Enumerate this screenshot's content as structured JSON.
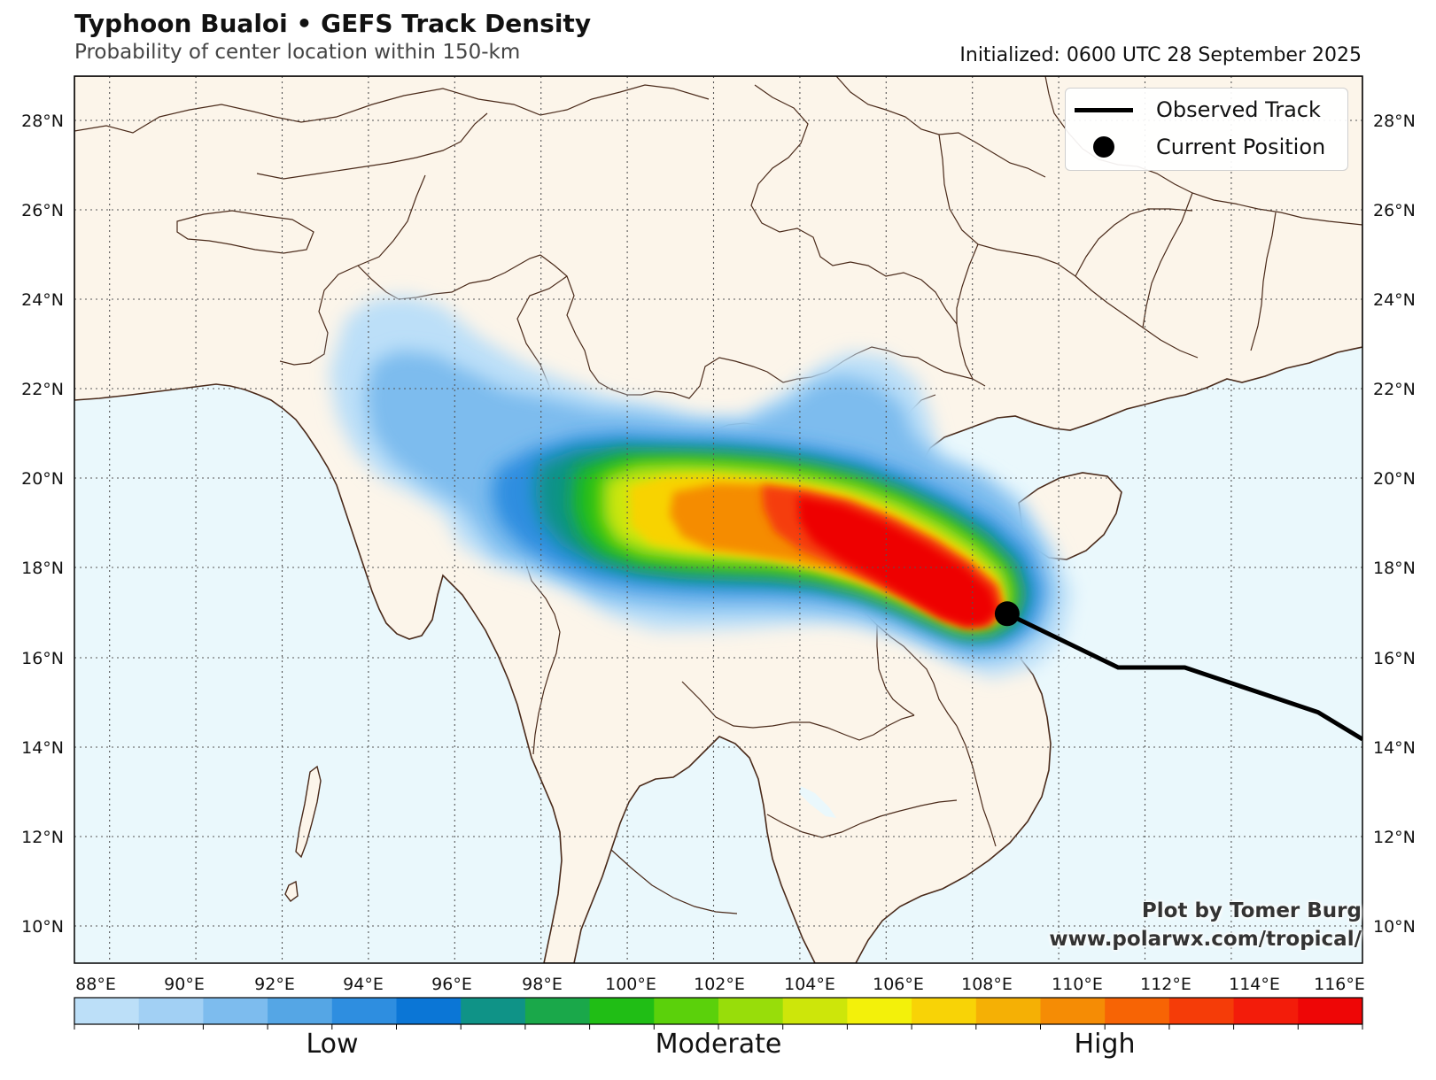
{
  "header": {
    "title": "Typhoon Bualoi • GEFS Track Density",
    "subtitle": "Probability of center location within 150-km",
    "initialized": "Initialized: 0600 UTC 28 September 2025"
  },
  "legend": {
    "track_label": "Observed Track",
    "position_label": "Current Position"
  },
  "credit": {
    "line1": "Plot by Tomer Burg",
    "line2": "www.polarwx.com/tropical/"
  },
  "map": {
    "lon_range": [
      87,
      116
    ],
    "lat_range": [
      9.2,
      29
    ],
    "lon_ticks": [
      "88°E",
      "90°E",
      "92°E",
      "94°E",
      "96°E",
      "98°E",
      "100°E",
      "102°E",
      "104°E",
      "106°E",
      "108°E",
      "110°E",
      "112°E",
      "114°E",
      "116°E"
    ],
    "lat_ticks": [
      "10°N",
      "12°N",
      "14°N",
      "16°N",
      "18°N",
      "20°N",
      "22°N",
      "24°N",
      "26°N",
      "28°N"
    ],
    "land_color": "#fcf5ea",
    "ocean_color": "#eaf8fc",
    "border_color": "#4a2a1a"
  },
  "storm": {
    "current_position": {
      "lon": 108.0,
      "lat": 17.0
    },
    "observed_track": [
      {
        "lon": 108.0,
        "lat": 17.0
      },
      {
        "lon": 110.5,
        "lat": 15.8
      },
      {
        "lon": 112.0,
        "lat": 15.8
      },
      {
        "lon": 113.8,
        "lat": 15.2
      },
      {
        "lon": 115.0,
        "lat": 14.8
      },
      {
        "lon": 116.0,
        "lat": 14.2
      }
    ]
  },
  "colorbar": {
    "colors": [
      "#bcdff8",
      "#a2d0f4",
      "#7dbcee",
      "#55a6e5",
      "#2e8ee0",
      "#0b76d6",
      "#0f9387",
      "#1aa84a",
      "#20be15",
      "#5bd10b",
      "#98dd0a",
      "#cde60a",
      "#f3f10a",
      "#f8d306",
      "#f5b005",
      "#f58c05",
      "#f76405",
      "#f53c08",
      "#f31c0a",
      "#ee0606"
    ],
    "labels": [
      "Low",
      "Moderate",
      "High"
    ]
  }
}
